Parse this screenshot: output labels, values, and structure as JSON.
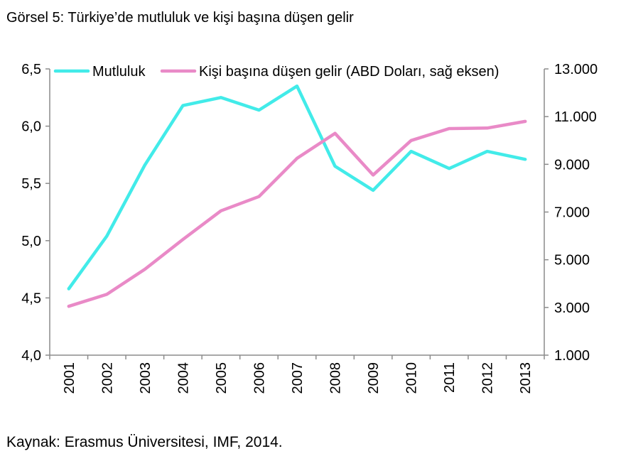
{
  "title": "Görsel 5: Türkiye’de mutluluk ve kişi başına düşen gelir",
  "source": "Kaynak: Erasmus Üniversitesi, IMF, 2014.",
  "chart_data": {
    "type": "line",
    "categories": [
      "2001",
      "2002",
      "2003",
      "2004",
      "2005",
      "2006",
      "2007",
      "2008",
      "2009",
      "2010",
      "2011",
      "2012",
      "2013"
    ],
    "series": [
      {
        "name": "Mutluluk",
        "axis": "left",
        "color": "#42ebe9",
        "values": [
          4.58,
          5.04,
          5.66,
          6.18,
          6.25,
          6.14,
          6.35,
          5.65,
          5.44,
          5.78,
          5.63,
          5.78,
          5.71
        ]
      },
      {
        "name": "Kişi başına düşen gelir (ABD Doları, sağ eksen)",
        "axis": "right",
        "color": "#e98ac7",
        "values": [
          3050,
          3550,
          4600,
          5850,
          7050,
          7650,
          9250,
          10300,
          8550,
          10000,
          10500,
          10520,
          10800
        ]
      }
    ],
    "left_axis": {
      "ylim": [
        4.0,
        6.5
      ],
      "ticks": [
        4.0,
        4.5,
        5.0,
        5.5,
        6.0,
        6.5
      ],
      "tick_labels": [
        "4,0",
        "4,5",
        "5,0",
        "5,5",
        "6,0",
        "6,5"
      ]
    },
    "right_axis": {
      "ylim": [
        1000,
        13000
      ],
      "ticks": [
        1000,
        3000,
        5000,
        7000,
        9000,
        11000,
        13000
      ],
      "tick_labels": [
        "1.000",
        "3.000",
        "5.000",
        "7.000",
        "9.000",
        "11.000",
        "13.000"
      ]
    },
    "grid": false,
    "legend": "top"
  }
}
